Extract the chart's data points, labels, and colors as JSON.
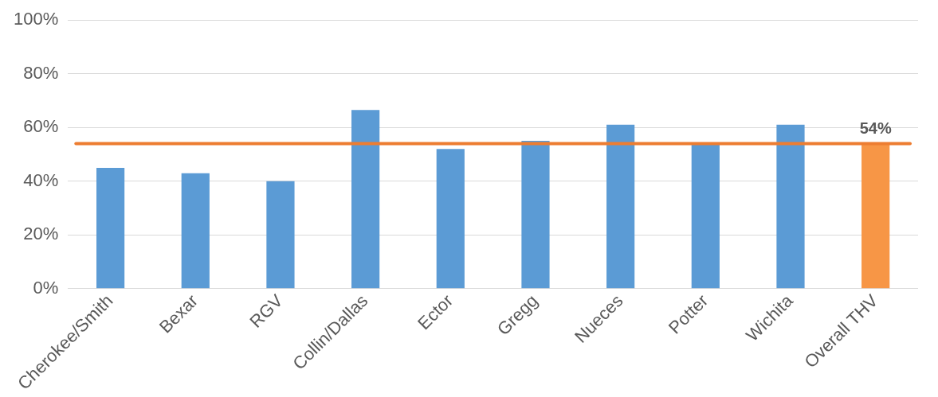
{
  "chart_data": {
    "type": "bar",
    "categories": [
      "Cherokee/Smith",
      "Bexar",
      "RGV",
      "Collin/Dallas",
      "Ector",
      "Gregg",
      "Nueces",
      "Potter",
      "Wichita",
      "Overall THV"
    ],
    "values": [
      45,
      43,
      40,
      66.5,
      52,
      55,
      61,
      54,
      61,
      54
    ],
    "colors": [
      "#5b9bd5",
      "#5b9bd5",
      "#5b9bd5",
      "#5b9bd5",
      "#5b9bd5",
      "#5b9bd5",
      "#5b9bd5",
      "#5b9bd5",
      "#5b9bd5",
      "#f79646"
    ],
    "value_labels": [
      null,
      null,
      null,
      null,
      null,
      null,
      null,
      null,
      null,
      "54%"
    ],
    "ylim": [
      0,
      100
    ],
    "yticks": [
      {
        "value": 0,
        "label": "0%"
      },
      {
        "value": 20,
        "label": "20%"
      },
      {
        "value": 40,
        "label": "40%"
      },
      {
        "value": 60,
        "label": "60%"
      },
      {
        "value": 80,
        "label": "80%"
      },
      {
        "value": 100,
        "label": "100%"
      }
    ],
    "ref_lines": [
      {
        "axis": "y",
        "value": 54,
        "color": "#ed7d31"
      }
    ],
    "grid": "y",
    "legend": false
  }
}
